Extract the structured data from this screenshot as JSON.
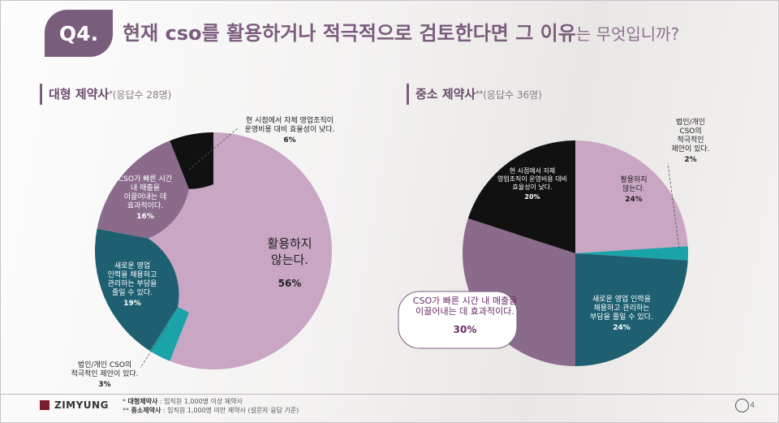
{
  "header": {
    "q_label": "Q4.",
    "title_bold": "현재 cso를 활용하거나 적극적으로 검토한다면 그 이유",
    "title_light": "는 무엇입니까?"
  },
  "sections": [
    {
      "title": "대형 제약사",
      "sup": "*",
      "sub": "(응답수 28명)"
    },
    {
      "title": "중소 제약사",
      "sup": "**",
      "sub": "(응답수 36명)"
    }
  ],
  "colors": {
    "purple_light": "#c9a6c3",
    "purple_mid": "#8a6b8b",
    "teal_dark": "#1e5f72",
    "teal": "#1aa3a8",
    "black": "#111111",
    "accent": "#7a5c7c"
  },
  "chart_data": [
    {
      "type": "pie",
      "donut": true,
      "title": "대형 제약사",
      "slices": [
        {
          "key": "a",
          "label_lines": [
            "활용하지",
            "않는다."
          ],
          "value": 56,
          "value_label": "56%",
          "color": "#c9a6c3"
        },
        {
          "key": "b",
          "label_lines": [
            "법인/개인 CSO의",
            "적극적인 제안이 있다."
          ],
          "value": 3,
          "value_label": "3%",
          "color": "#1aa3a8"
        },
        {
          "key": "c",
          "label_lines": [
            "새로운 영업",
            "인력을 채용하고",
            "관리하는 부담을",
            "줄일 수 있다."
          ],
          "value": 19,
          "value_label": "19%",
          "color": "#1e5f72"
        },
        {
          "key": "d",
          "label_lines": [
            "CSO가 빠른 시간",
            "내 매출을",
            "이끌어내는 데",
            "효과적이다."
          ],
          "value": 16,
          "value_label": "16%",
          "color": "#8a6b8b"
        },
        {
          "key": "e",
          "label_lines": [
            "현 시점에서 자체 영업조직이",
            "운영비용 대비 효율성이 낮다."
          ],
          "value": 6,
          "value_label": "6%",
          "color": "#111111"
        }
      ]
    },
    {
      "type": "pie",
      "donut": true,
      "title": "중소 제약사",
      "slices": [
        {
          "key": "a",
          "label_lines": [
            "활용하지",
            "않는다."
          ],
          "value": 24,
          "value_label": "24%",
          "color": "#c9a6c3"
        },
        {
          "key": "b",
          "label_lines": [
            "법인/개인",
            "CSO의",
            "적극적인",
            "제안이 있다."
          ],
          "value": 2,
          "value_label": "2%",
          "color": "#1aa3a8"
        },
        {
          "key": "c",
          "label_lines": [
            "새로운 영업 인력을",
            "채용하고 관리하는",
            "부담을 줄일 수 있다."
          ],
          "value": 24,
          "value_label": "24%",
          "color": "#1e5f72"
        },
        {
          "key": "d",
          "label_lines": [
            "CSO가 빠른 시간 내 매출을",
            "이끌어내는 데 효과적이다."
          ],
          "value": 30,
          "value_label": "30%",
          "color": "#8a6b8b"
        },
        {
          "key": "e",
          "label_lines": [
            "현 시점에서 자체",
            "영업조직이 운영비용 대비",
            "효율성이 낮다."
          ],
          "value": 20,
          "value_label": "20%",
          "color": "#111111"
        }
      ]
    }
  ],
  "footer": {
    "logo": "ZIMYUNG",
    "note1_mark": "*",
    "note1_bold": "대형제약사",
    "note1_text": ": 임직원 1,000명 이상 제약사",
    "note2_mark": "**",
    "note2_bold": "중소제약사",
    "note2_text": ": 임직원 1,000명 미만 제약사 (설문자 응답 기준)",
    "page": "4"
  }
}
